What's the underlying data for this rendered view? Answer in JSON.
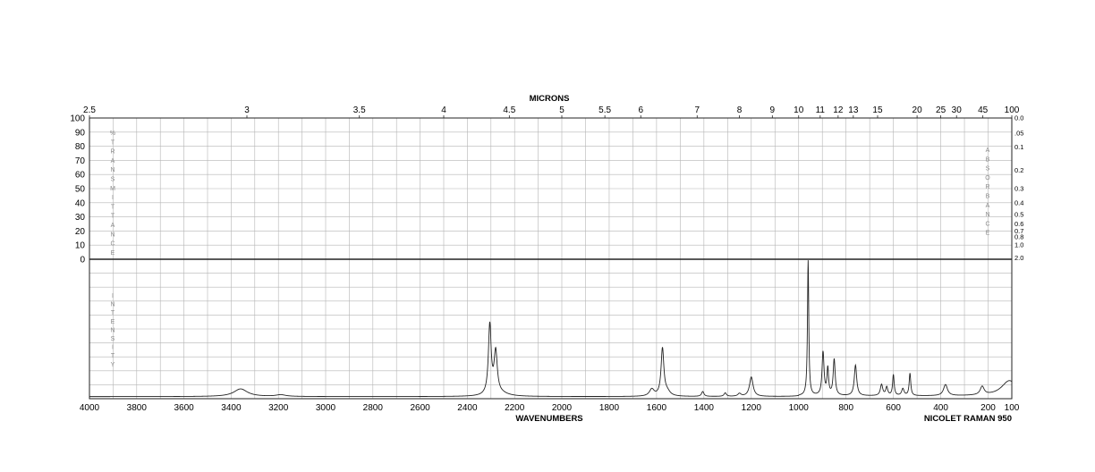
{
  "chart_data": {
    "type": "line",
    "title": "",
    "xlabel": "WAVENUMBERS",
    "top_axis_label": "MICRONS",
    "instrument": "NICOLET RAMAN 950",
    "xlim": [
      4000,
      100
    ],
    "x_ticks": [
      4000,
      3800,
      3600,
      3400,
      3200,
      3000,
      2800,
      2600,
      2400,
      2200,
      2000,
      1800,
      1600,
      1400,
      1200,
      1000,
      800,
      600,
      400,
      200,
      100
    ],
    "micron_ticks": [
      "2.5",
      "3",
      "3.5",
      "4",
      "4.5",
      "5",
      "5.5",
      "6",
      "7",
      "8",
      "9",
      "10",
      "11",
      "12",
      "13",
      "15",
      "20",
      "25",
      "30",
      "45",
      "100"
    ],
    "transmittance_ticks": [
      "100",
      "90",
      "80",
      "70",
      "60",
      "50",
      "40",
      "30",
      "20",
      "10",
      "0"
    ],
    "absorbance_ticks": [
      "0.0",
      ".05",
      "0.1",
      "0.2",
      "0.3",
      "0.4",
      "0.5",
      "0.6",
      "0.7",
      "0.8",
      "1.0",
      "2.0"
    ],
    "left_vertical_label_top": "%TRANSMITTANCE",
    "left_vertical_label_bottom": "INTENSITY",
    "right_vertical_label": "ABSORBANCE",
    "ylim": [
      0,
      100
    ],
    "grid": true,
    "series": [
      {
        "color": "#222222",
        "baseline": 1.5,
        "peaks": [
          {
            "x": 3360,
            "height": 5.5,
            "width": 35
          },
          {
            "x": 3190,
            "height": 1.2,
            "width": 25
          },
          {
            "x": 2305,
            "height": 50,
            "width": 7
          },
          {
            "x": 2280,
            "height": 30,
            "width": 8
          },
          {
            "x": 2260,
            "height": 2,
            "width": 40
          },
          {
            "x": 1620,
            "height": 5,
            "width": 12
          },
          {
            "x": 1575,
            "height": 34,
            "width": 7
          },
          {
            "x": 1555,
            "height": 3,
            "width": 15
          },
          {
            "x": 1405,
            "height": 3.5,
            "width": 6
          },
          {
            "x": 1310,
            "height": 2.5,
            "width": 6
          },
          {
            "x": 1250,
            "height": 2,
            "width": 8
          },
          {
            "x": 1200,
            "height": 14,
            "width": 9
          },
          {
            "x": 960,
            "height": 97,
            "width": 3.2
          },
          {
            "x": 897,
            "height": 31,
            "width": 5
          },
          {
            "x": 877,
            "height": 19,
            "width": 4
          },
          {
            "x": 850,
            "height": 26,
            "width": 5
          },
          {
            "x": 760,
            "height": 22,
            "width": 6
          },
          {
            "x": 650,
            "height": 8,
            "width": 6
          },
          {
            "x": 628,
            "height": 6,
            "width": 5
          },
          {
            "x": 600,
            "height": 15,
            "width": 4
          },
          {
            "x": 560,
            "height": 5,
            "width": 6
          },
          {
            "x": 530,
            "height": 16,
            "width": 4
          },
          {
            "x": 380,
            "height": 8,
            "width": 10
          },
          {
            "x": 225,
            "height": 6,
            "width": 10
          },
          {
            "x": 110,
            "height": 11,
            "width": 40
          }
        ]
      }
    ]
  }
}
